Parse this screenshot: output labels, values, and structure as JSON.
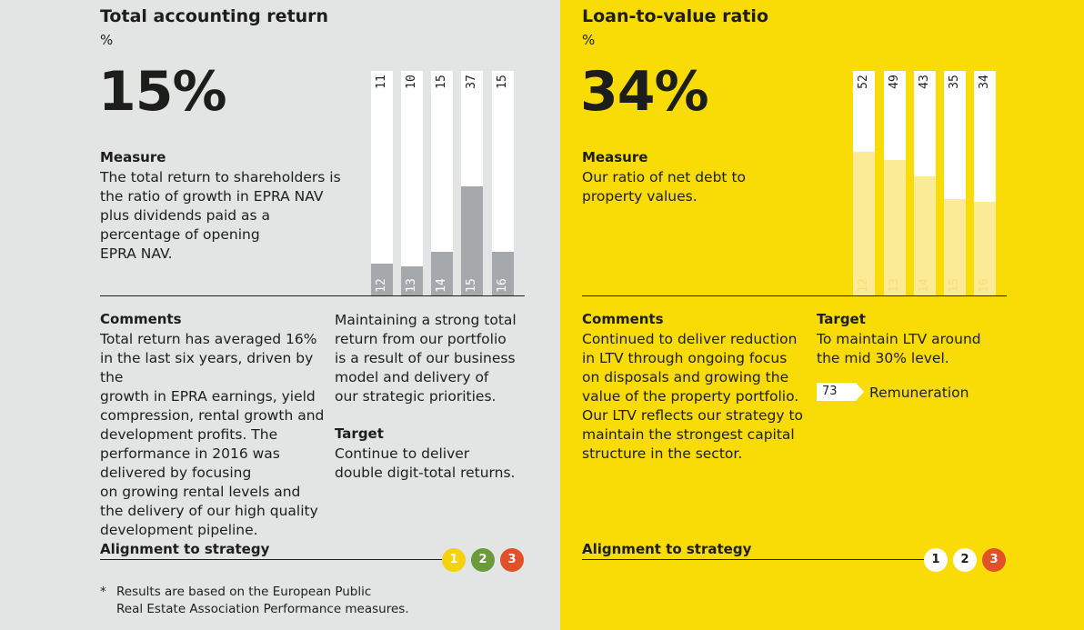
{
  "left": {
    "title": "Total accounting return",
    "unit": "%",
    "big_value": "15%",
    "measure_heading": "Measure",
    "measure_lines": [
      "The total return to shareholders is",
      "the ratio of growth in EPRA NAV",
      "plus dividends paid as a",
      "percentage of opening",
      "EPRA NAV."
    ],
    "comments_heading": "Comments",
    "comments_col1": [
      "Total return has averaged 16%",
      "in the last six years, driven by the",
      "growth in EPRA earnings, yield",
      "compression, rental growth and",
      "development profits. The",
      "performance in 2016 was",
      "delivered by focusing",
      "on growing rental levels and",
      "the delivery of our high quality",
      "development pipeline."
    ],
    "comments_col2": [
      "Maintaining a strong total",
      "return from our portfolio",
      "is a result of our business",
      "model and delivery of",
      "our strategic priorities."
    ],
    "target_heading": "Target",
    "target_lines": [
      "Continue to deliver",
      "double digit-total returns."
    ],
    "alignment_label": "Alignment to strategy",
    "strategy_numbers": [
      "1",
      "2",
      "3"
    ],
    "strategy_colors": [
      "#f6d20a",
      "#6b9a3b",
      "#e0512a"
    ],
    "footnote_mark": "*",
    "footnote_lines": [
      "Results are based on the European Public",
      "Real Estate Association Performance measures."
    ]
  },
  "right": {
    "title": "Loan-to-value ratio",
    "unit": "%",
    "big_value": "34%",
    "measure_heading": "Measure",
    "measure_lines": [
      "Our ratio of net debt to",
      "property values."
    ],
    "comments_heading": "Comments",
    "comments_lines": [
      "Continued to deliver reduction",
      "in LTV through ongoing focus",
      "on disposals and growing the",
      "value of the property portfolio.",
      "Our LTV reflects our strategy to",
      "maintain the strongest capital",
      "structure in the sector."
    ],
    "target_heading": "Target",
    "target_lines": [
      "To maintain LTV around",
      "the mid 30% level."
    ],
    "tag_number": "73",
    "tag_label": "Remuneration",
    "alignment_label": "Alignment to strategy",
    "strategy_numbers": [
      "1",
      "2",
      "3"
    ],
    "strategy_colors": [
      "#ffffff",
      "#ffffff",
      "#e0512a"
    ]
  },
  "chart_data": [
    {
      "type": "bar",
      "categories": [
        "12",
        "13",
        "14",
        "15",
        "16"
      ],
      "values": [
        11,
        10,
        15,
        37,
        15
      ],
      "ylim": [
        0,
        76
      ],
      "color": "#a5a9ac",
      "track_color": "#ffffff"
    },
    {
      "type": "bar",
      "categories": [
        "12",
        "13",
        "14",
        "15",
        "16"
      ],
      "values": [
        52,
        49,
        43,
        35,
        34
      ],
      "ylim": [
        0,
        81
      ],
      "color": "#fbea96",
      "track_color": "#ffffff"
    }
  ]
}
